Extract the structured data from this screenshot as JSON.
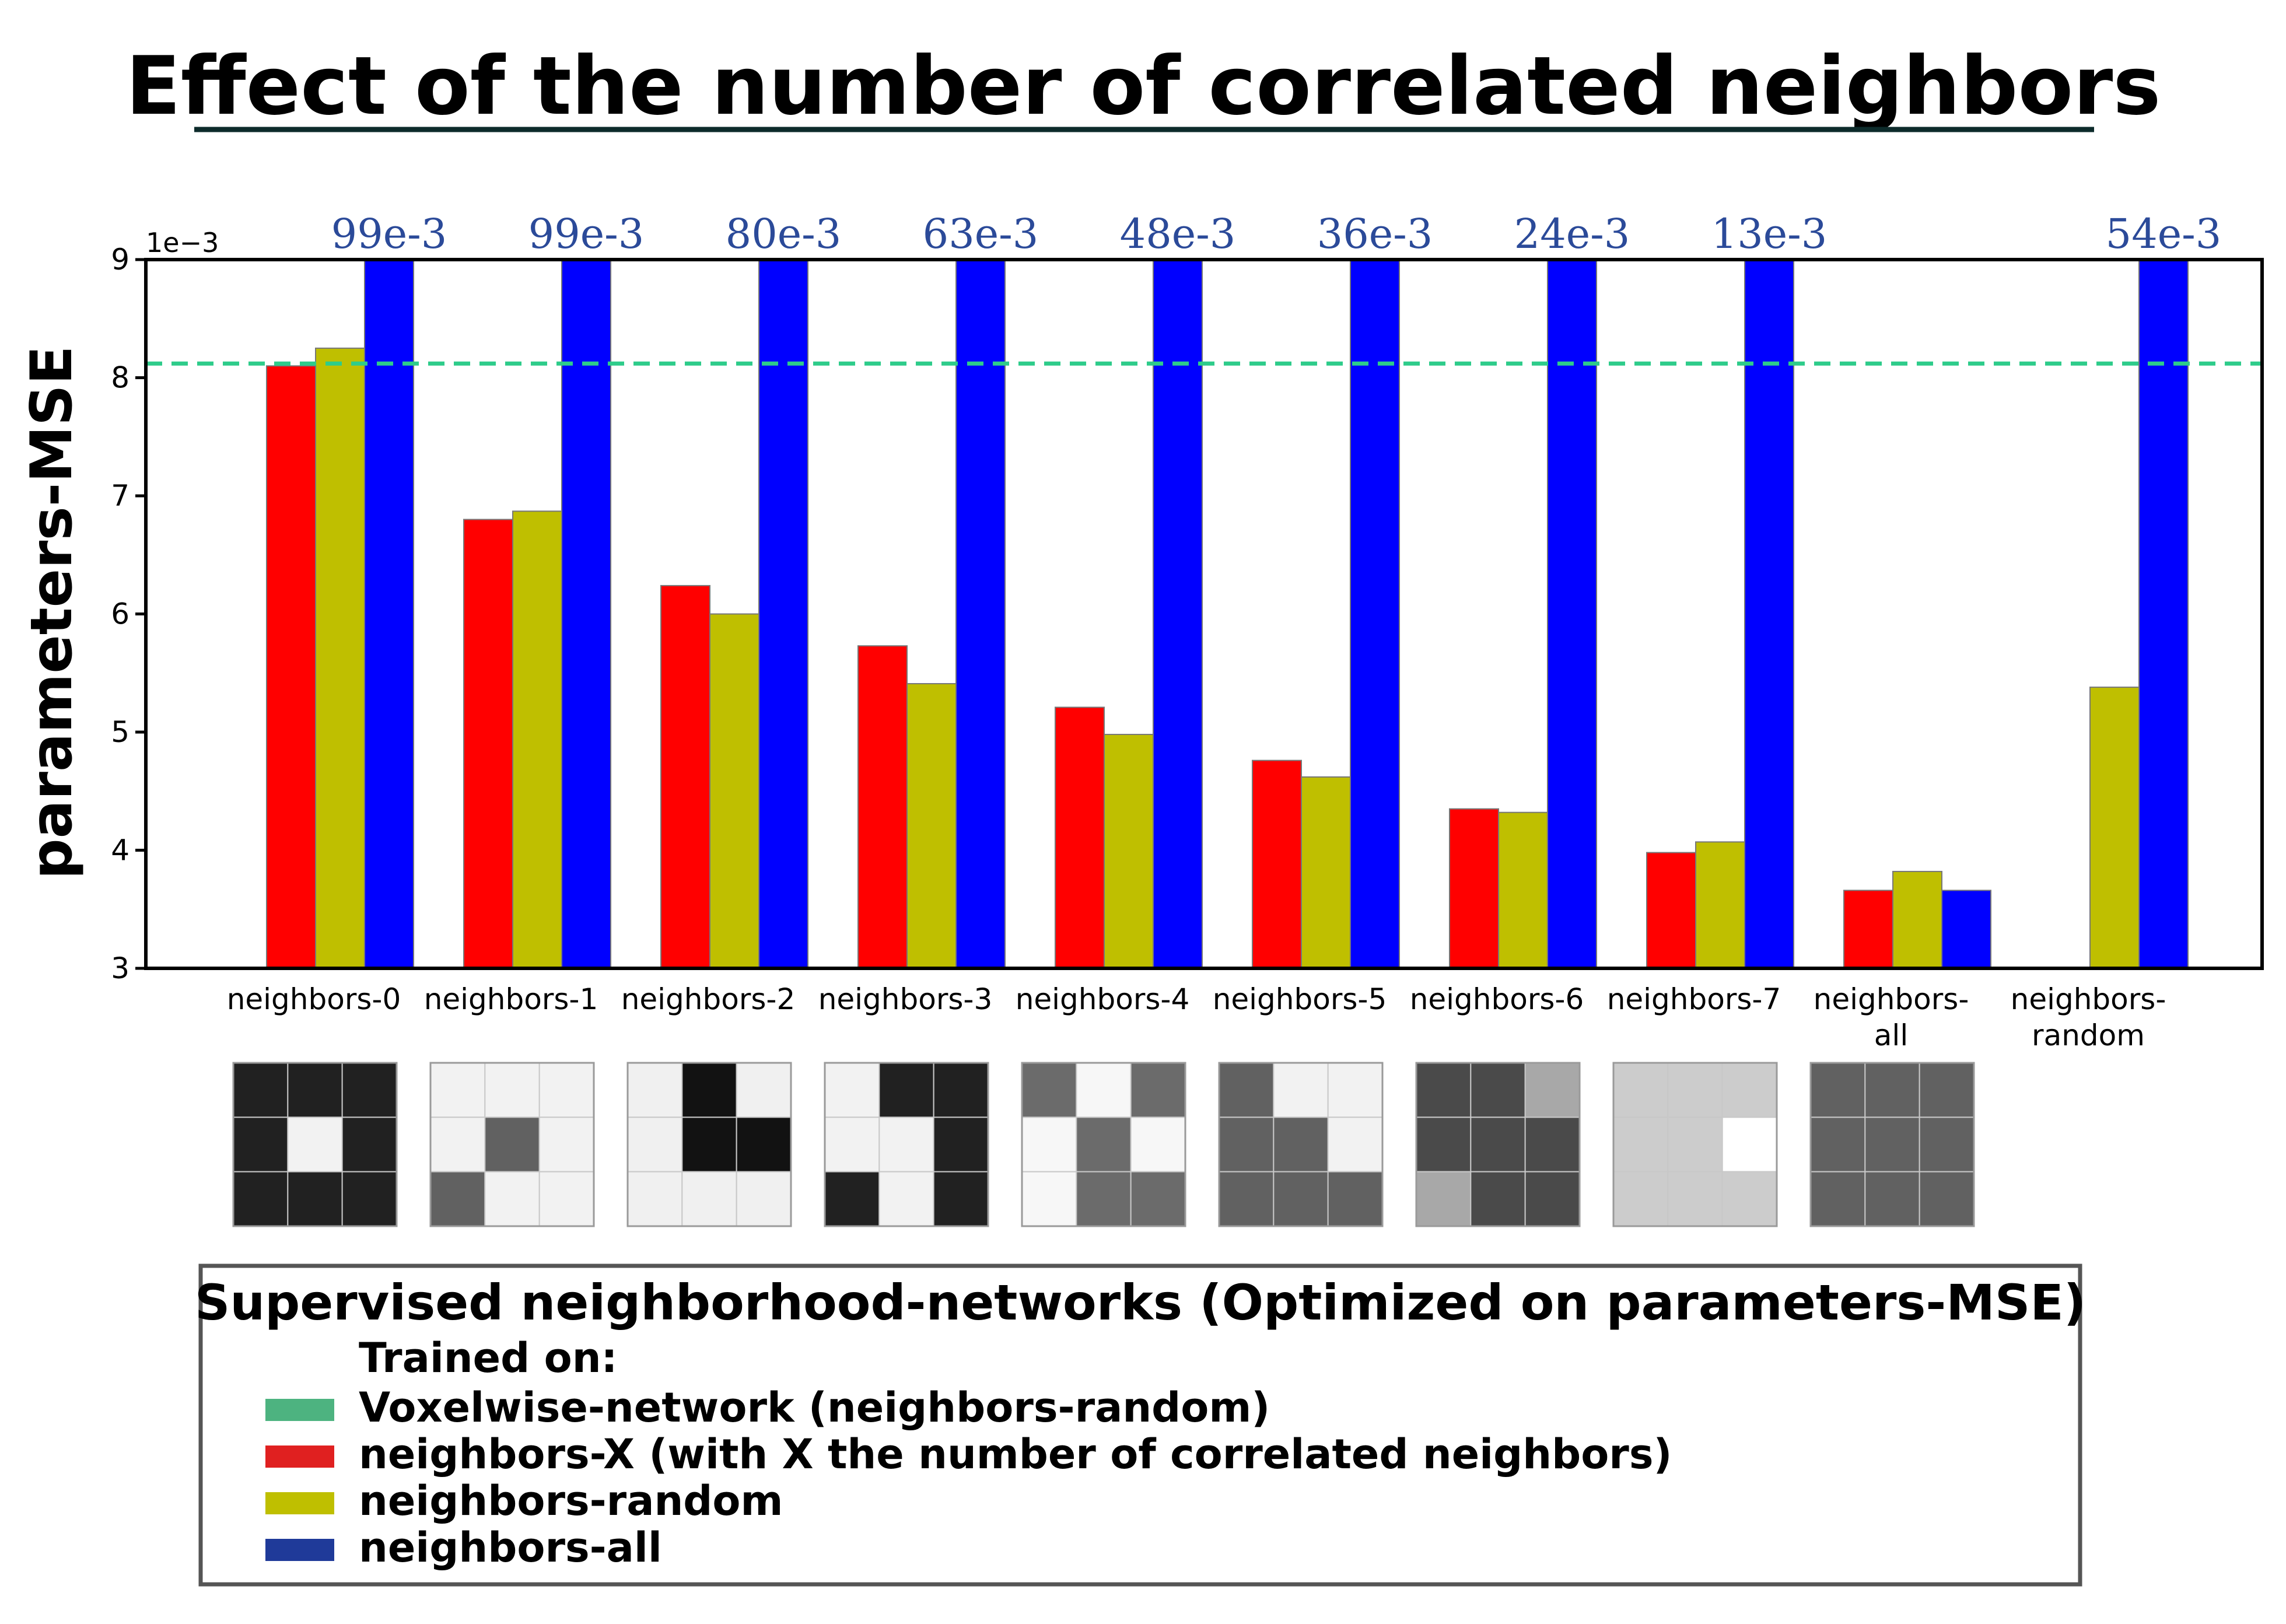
{
  "title": "Effect of the number of correlated neighbors",
  "chart_data": {
    "type": "bar",
    "title": "Effect of the number of correlated neighbors",
    "ylabel": "parameters-MSE",
    "xlabel": "",
    "y_scale_label": "1e−3",
    "ylim": [
      3,
      9
    ],
    "yticks": [
      3,
      4,
      5,
      6,
      7,
      8,
      9
    ],
    "grid": false,
    "categories": [
      [
        "neighbors-0"
      ],
      [
        "neighbors-1"
      ],
      [
        "neighbors-2"
      ],
      [
        "neighbors-3"
      ],
      [
        "neighbors-4"
      ],
      [
        "neighbors-5"
      ],
      [
        "neighbors-6"
      ],
      [
        "neighbors-7"
      ],
      [
        "neighbors-",
        "all"
      ],
      [
        "neighbors-",
        "random"
      ]
    ],
    "series": [
      {
        "name": "neighbors-X",
        "color": "#ff0000",
        "values": [
          8.1,
          6.8,
          6.24,
          5.73,
          5.21,
          4.76,
          4.35,
          3.98,
          3.66,
          null
        ]
      },
      {
        "name": "neighbors-random",
        "color": "#bfbf00",
        "values": [
          8.25,
          6.87,
          6.0,
          5.41,
          4.98,
          4.62,
          4.32,
          4.07,
          3.82,
          5.38
        ]
      },
      {
        "name": "neighbors-all",
        "color": "#0000ff",
        "values": [
          99,
          99,
          80,
          63,
          48,
          36,
          24,
          13,
          3.66,
          54
        ]
      }
    ],
    "overflow_labels": [
      "99e-3",
      "99e-3",
      "80e-3",
      "63e-3",
      "48e-3",
      "36e-3",
      "24e-3",
      "13e-3",
      "",
      "54e-3"
    ],
    "reference_line": {
      "name": "Voxelwise-network (neighbors-random)",
      "value": 8.12,
      "color": "#2ecc8a",
      "style": "dashed"
    },
    "neighborhood_patterns": [
      [
        0.13,
        0.13,
        0.13,
        0.13,
        0.95,
        0.13,
        0.13,
        0.13,
        0.13
      ],
      [
        0.95,
        0.95,
        0.95,
        0.95,
        0.38,
        0.95,
        0.38,
        0.95,
        0.95
      ],
      [
        0.94,
        0.07,
        0.94,
        0.94,
        0.07,
        0.07,
        0.94,
        0.94,
        0.94
      ],
      [
        0.95,
        0.13,
        0.13,
        0.95,
        0.95,
        0.13,
        0.13,
        0.95,
        0.13
      ],
      [
        0.42,
        0.97,
        0.42,
        0.97,
        0.42,
        0.97,
        0.97,
        0.42,
        0.42
      ],
      [
        0.38,
        0.95,
        0.95,
        0.38,
        0.38,
        0.95,
        0.38,
        0.38,
        0.38
      ],
      [
        0.29,
        0.29,
        0.66,
        0.29,
        0.29,
        0.29,
        0.66,
        0.29,
        0.29
      ],
      [
        0.8,
        0.8,
        0.8,
        0.8,
        0.8,
        1.0,
        0.8,
        0.8,
        0.8
      ],
      [
        0.38,
        0.38,
        0.38,
        0.38,
        0.38,
        0.38,
        0.38,
        0.38,
        0.38
      ]
    ],
    "legend": {
      "placement": "bottom",
      "title": "Supervised neighborhood-networks (Optimized on parameters-MSE)",
      "subtitle": "Trained on:",
      "entries": [
        {
          "label": "Voxelwise-network (neighbors-random)",
          "color": "#4db380"
        },
        {
          "label": "neighbors-X (with X the number of correlated neighbors)",
          "color": "#e02020"
        },
        {
          "label": "neighbors-random",
          "color": "#bfbf00"
        },
        {
          "label": "neighbors-all",
          "color": "#1f3a99"
        }
      ]
    }
  }
}
